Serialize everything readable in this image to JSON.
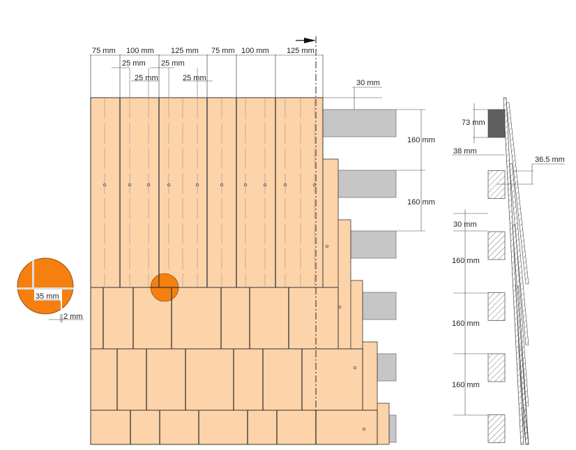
{
  "colors": {
    "shingle": "#FDD3AA",
    "highlight": "#F5800F",
    "batten": "#C6C6C6",
    "line": "#333333"
  },
  "top_dims": [
    "75 mm",
    "100 mm",
    "125 mm",
    "75 mm",
    "100 mm",
    "125 mm"
  ],
  "offset_dims": [
    "25 mm",
    "25 mm",
    "25 mm",
    "25 mm"
  ],
  "front_dims": {
    "gap": "30 mm",
    "spacing1": "160 mm",
    "spacing2": "160 mm"
  },
  "detail": {
    "gap_width": "35 mm",
    "joint": "2 mm"
  },
  "section_dims": {
    "batten_height": "73 mm",
    "batten_width": "38 mm",
    "overlap": "36.5 mm",
    "gap": "30 mm",
    "spacing1": "160 mm",
    "spacing2": "160 mm",
    "spacing3": "160 mm"
  }
}
